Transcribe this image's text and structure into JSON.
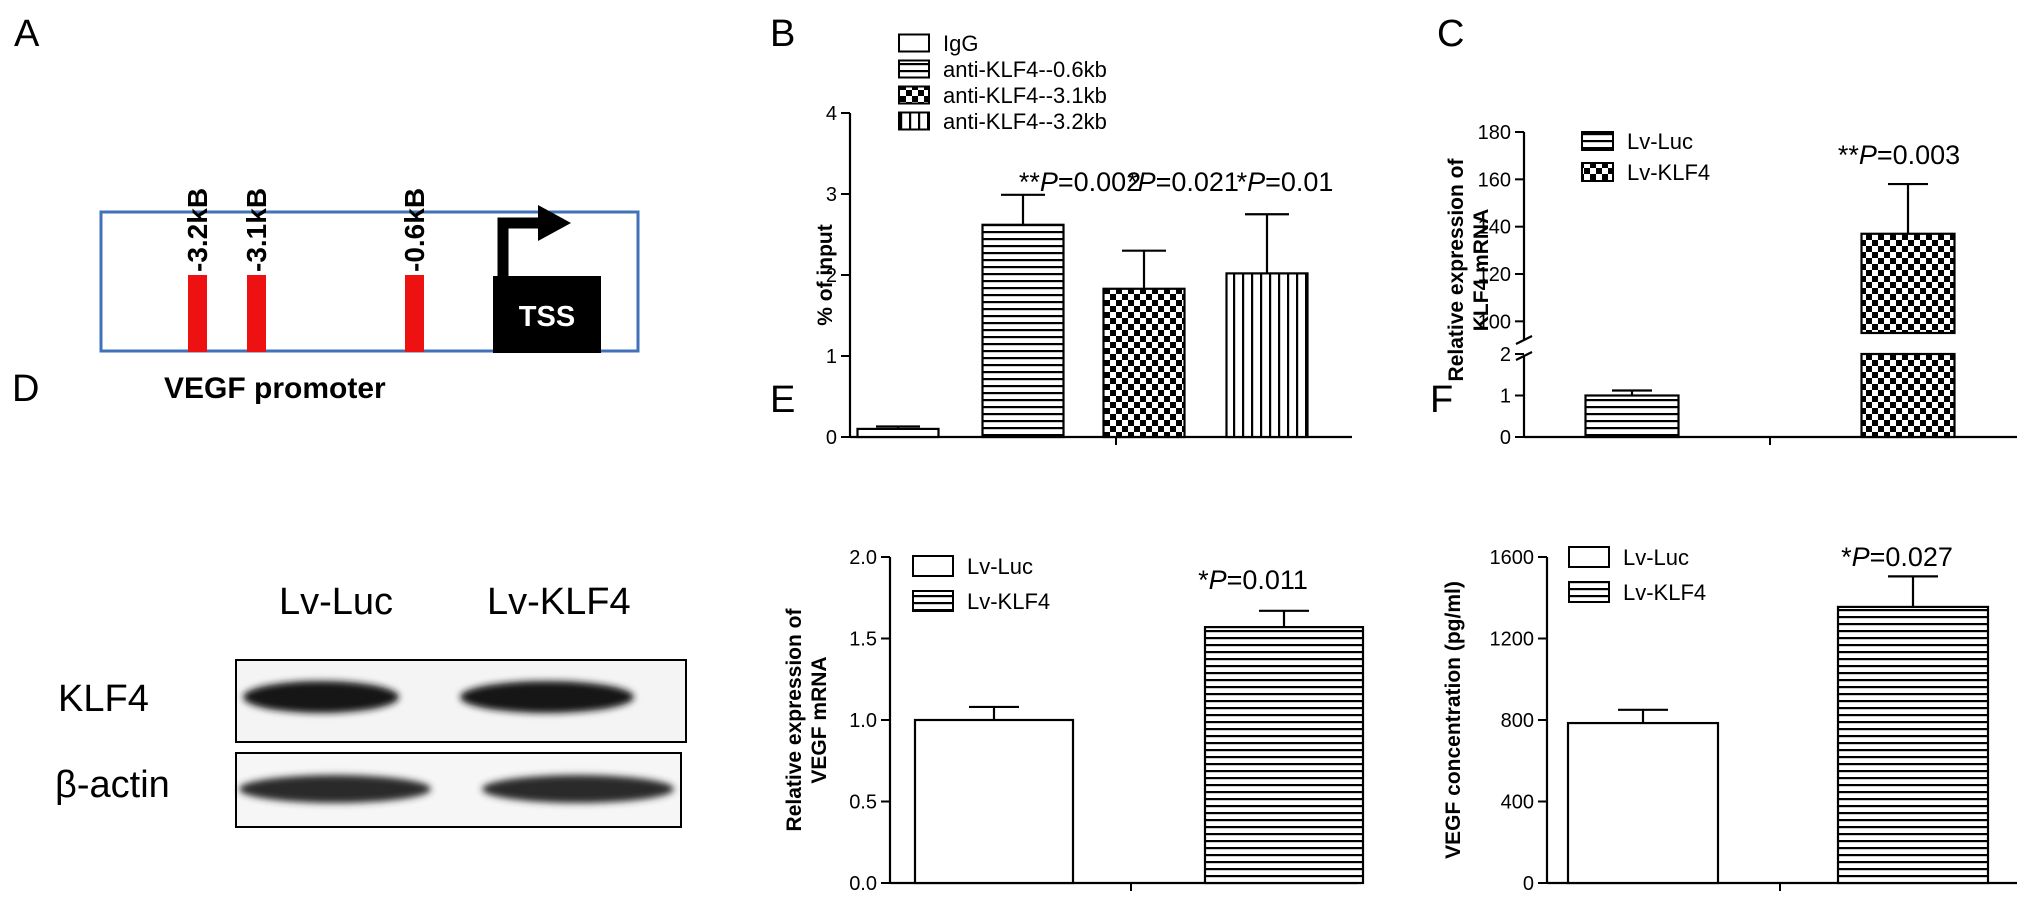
{
  "panel_labels": {
    "A": "A",
    "B": "B",
    "C": "C",
    "D": "D",
    "E": "E",
    "F": "F"
  },
  "promoter": {
    "sites": [
      "-3.2kB",
      "-3.1kB",
      "-0.6kB"
    ],
    "tss_label": "TSS",
    "title": "VEGF promoter",
    "colors": {
      "box": "#3f72b8",
      "site": "#ee1111",
      "tss": "#000000"
    }
  },
  "western": {
    "lanes": [
      "Lv-Luc",
      "Lv-KLF4"
    ],
    "rows": [
      "KLF4",
      "β-actin"
    ]
  },
  "chart_data": [
    {
      "panel": "B",
      "type": "bar",
      "categories": [
        "IgG",
        "anti-KLF4--0.6kb",
        "anti-KLF4--3.1kb",
        "anti-KLF4--3.2kb"
      ],
      "legend": [
        "IgG",
        "anti-KLF4--0.6kb",
        "anti-KLF4--3.1kb",
        "anti-KLF4--3.2kb"
      ],
      "values": [
        0.1,
        2.62,
        1.83,
        2.02
      ],
      "errors": [
        0.03,
        0.37,
        0.47,
        0.73
      ],
      "patterns": [
        "open",
        "hstripe",
        "checker",
        "vstripe"
      ],
      "ylabel": "% of input",
      "ylim": [
        0,
        4
      ],
      "yticks": [
        "0",
        "1",
        "2",
        "3",
        "4"
      ],
      "annotations": [
        {
          "pre": "**",
          "p": "P",
          "post": "=0.002"
        },
        {
          "pre": "*",
          "p": "P",
          "post": "=0.021"
        },
        {
          "pre": "*",
          "p": "P",
          "post": "=0.01"
        }
      ]
    },
    {
      "panel": "C",
      "type": "bar",
      "categories": [
        "Lv-Luc",
        "Lv-KLF4"
      ],
      "legend": [
        "Lv-Luc",
        "Lv-KLF4"
      ],
      "values": [
        1.0,
        137
      ],
      "errors": [
        0.12,
        21
      ],
      "patterns": [
        "hstripe",
        "checker"
      ],
      "ylabel": "Relative expression of KLF4 mRNA",
      "ylabel_lines": [
        "Relative expression of",
        "KLF4 mRNA"
      ],
      "axis_break": true,
      "ylim_lower": [
        0,
        2
      ],
      "ylim_upper": [
        90,
        180
      ],
      "yticks_lower": [
        "0",
        "1",
        "2"
      ],
      "yticks_upper": [
        "100",
        "120",
        "140",
        "160",
        "180"
      ],
      "annotation": {
        "pre": "**",
        "p": "P",
        "post": "=0.003"
      }
    },
    {
      "panel": "E",
      "type": "bar",
      "categories": [
        "Lv-Luc",
        "Lv-KLF4"
      ],
      "legend": [
        "Lv-Luc",
        "Lv-KLF4"
      ],
      "values": [
        1.0,
        1.57
      ],
      "errors": [
        0.08,
        0.1
      ],
      "patterns": [
        "open",
        "hstripe"
      ],
      "ylabel": "Relative expression of VEGF mRNA",
      "ylabel_lines": [
        "Relative expression of",
        "VEGF mRNA"
      ],
      "ylim": [
        0,
        2.0
      ],
      "yticks": [
        "0.0",
        "0.5",
        "1.0",
        "1.5",
        "2.0"
      ],
      "annotation": {
        "pre": "*",
        "p": "P",
        "post": "=0.011"
      }
    },
    {
      "panel": "F",
      "type": "bar",
      "categories": [
        "Lv-Luc",
        "Lv-KLF4"
      ],
      "legend": [
        "Lv-Luc",
        "Lv-KLF4"
      ],
      "values": [
        785,
        1355
      ],
      "errors": [
        65,
        150
      ],
      "patterns": [
        "open",
        "hstripe"
      ],
      "ylabel": "VEGF concentration (pg/ml)",
      "ylim": [
        0,
        1600
      ],
      "yticks": [
        "0",
        "400",
        "800",
        "1200",
        "1600"
      ],
      "annotation": {
        "pre": "*",
        "p": "P",
        "post": "=0.027"
      }
    }
  ]
}
